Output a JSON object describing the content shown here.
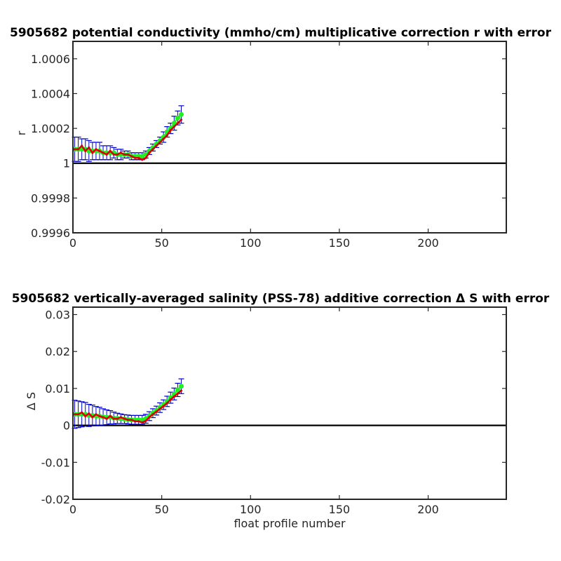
{
  "chart_data": [
    {
      "type": "line",
      "title": "5905682 potential conductivity (mmho/cm) multiplicative correction r with error",
      "xlabel": "",
      "ylabel": "r",
      "xlim": [
        0,
        244
      ],
      "ylim": [
        0.9996,
        1.0007
      ],
      "x_ticks": [
        0,
        50,
        100,
        150,
        200
      ],
      "x_tick_labels": [
        "0",
        "50",
        "100",
        "150",
        "200"
      ],
      "y_ticks": [
        0.9996,
        0.9998,
        1.0,
        1.0002,
        1.0004,
        1.0006
      ],
      "y_tick_labels": [
        "0.9996",
        "0.9998",
        "1",
        "1.0002",
        "1.0004",
        "1.0006"
      ],
      "reference_line": 1.0,
      "grid": false,
      "series": [
        {
          "role": "red",
          "color": "#dd0000",
          "x": [
            1,
            3,
            5,
            7,
            9,
            11,
            13,
            15,
            17,
            19,
            21,
            23,
            25,
            27,
            29,
            31,
            33,
            35,
            37,
            39,
            41,
            43,
            45,
            47,
            49,
            51,
            53,
            55,
            57,
            59,
            61
          ],
          "values": [
            1.00008,
            1.00008,
            1.0001,
            1.00007,
            1.00009,
            1.00006,
            1.00008,
            1.00007,
            1.00006,
            1.00005,
            1.00007,
            1.00005,
            1.00005,
            1.00006,
            1.00005,
            1.00005,
            1.00004,
            1.00003,
            1.00003,
            1.00002,
            1.00003,
            1.00006,
            1.00008,
            1.0001,
            1.00012,
            1.00014,
            1.00016,
            1.00019,
            1.00021,
            1.00023,
            1.00025
          ]
        },
        {
          "role": "green",
          "color": "#22ee22",
          "x": [
            1,
            3,
            5,
            7,
            9,
            11,
            13,
            15,
            17,
            19,
            21,
            23,
            25,
            27,
            29,
            31,
            33,
            35,
            37,
            39,
            41,
            43,
            45,
            47,
            49,
            51,
            53,
            55,
            57,
            59,
            61
          ],
          "values": [
            1.00008,
            1.00008,
            1.00008,
            1.00008,
            1.00007,
            1.00007,
            1.00007,
            1.00007,
            1.00006,
            1.00006,
            1.00006,
            1.00006,
            1.00005,
            1.00005,
            1.00005,
            1.00005,
            1.00004,
            1.00004,
            1.00004,
            1.00004,
            1.00005,
            1.00007,
            1.00009,
            1.00011,
            1.00013,
            1.00015,
            1.00018,
            1.0002,
            1.00023,
            1.00026,
            1.00028
          ],
          "errors": [
            7e-05,
            7e-05,
            6e-05,
            6e-05,
            6e-05,
            5e-05,
            5e-05,
            5e-05,
            4e-05,
            4e-05,
            4e-05,
            3e-05,
            3e-05,
            3e-05,
            2e-05,
            2e-05,
            2e-05,
            2e-05,
            2e-05,
            2e-05,
            2e-05,
            2e-05,
            2e-05,
            2e-05,
            2e-05,
            3e-05,
            3e-05,
            3e-05,
            4e-05,
            4e-05,
            5e-05
          ],
          "error_color": "#0000cc"
        }
      ]
    },
    {
      "type": "line",
      "title": "5905682 vertically-averaged salinity (PSS-78) additive correction Δ S with error",
      "xlabel": "float profile number",
      "ylabel": "Δ S",
      "xlim": [
        0,
        244
      ],
      "ylim": [
        -0.02,
        0.032
      ],
      "x_ticks": [
        0,
        50,
        100,
        150,
        200
      ],
      "x_tick_labels": [
        "0",
        "50",
        "100",
        "150",
        "200"
      ],
      "y_ticks": [
        -0.02,
        -0.01,
        0,
        0.01,
        0.02,
        0.03
      ],
      "y_tick_labels": [
        "-0.02",
        "-0.01",
        "0",
        "0.01",
        "0.02",
        "0.03"
      ],
      "reference_line": 0,
      "grid": false,
      "series": [
        {
          "role": "red",
          "color": "#dd0000",
          "x": [
            1,
            3,
            5,
            7,
            9,
            11,
            13,
            15,
            17,
            19,
            21,
            23,
            25,
            27,
            29,
            31,
            33,
            35,
            37,
            39,
            41,
            43,
            45,
            47,
            49,
            51,
            53,
            55,
            57,
            59,
            61
          ],
          "values": [
            0.003,
            0.003,
            0.0035,
            0.0025,
            0.0032,
            0.0022,
            0.003,
            0.0025,
            0.0022,
            0.0018,
            0.0025,
            0.0018,
            0.0018,
            0.0022,
            0.0018,
            0.0015,
            0.0015,
            0.0011,
            0.0011,
            0.0008,
            0.0012,
            0.0022,
            0.003,
            0.0037,
            0.0045,
            0.0052,
            0.006,
            0.007,
            0.0078,
            0.0086,
            0.0094
          ]
        },
        {
          "role": "green",
          "color": "#22ee22",
          "x": [
            1,
            3,
            5,
            7,
            9,
            11,
            13,
            15,
            17,
            19,
            21,
            23,
            25,
            27,
            29,
            31,
            33,
            35,
            37,
            39,
            41,
            43,
            45,
            47,
            49,
            51,
            53,
            55,
            57,
            59,
            61
          ],
          "values": [
            0.003,
            0.003,
            0.003,
            0.003,
            0.0027,
            0.0027,
            0.0025,
            0.0025,
            0.0023,
            0.0022,
            0.0022,
            0.002,
            0.0019,
            0.0018,
            0.0017,
            0.0016,
            0.0015,
            0.0015,
            0.0015,
            0.0015,
            0.0018,
            0.0025,
            0.0033,
            0.004,
            0.0048,
            0.0056,
            0.0065,
            0.0075,
            0.0085,
            0.0096,
            0.0106
          ],
          "errors": [
            0.0038,
            0.0036,
            0.0034,
            0.0032,
            0.003,
            0.0028,
            0.0026,
            0.0024,
            0.0022,
            0.002,
            0.0018,
            0.0016,
            0.0014,
            0.0013,
            0.0012,
            0.0012,
            0.0012,
            0.0012,
            0.0012,
            0.0012,
            0.0012,
            0.0012,
            0.0012,
            0.0012,
            0.0013,
            0.0013,
            0.0014,
            0.0015,
            0.0016,
            0.0018,
            0.002
          ],
          "error_color": "#0000cc"
        }
      ]
    }
  ]
}
